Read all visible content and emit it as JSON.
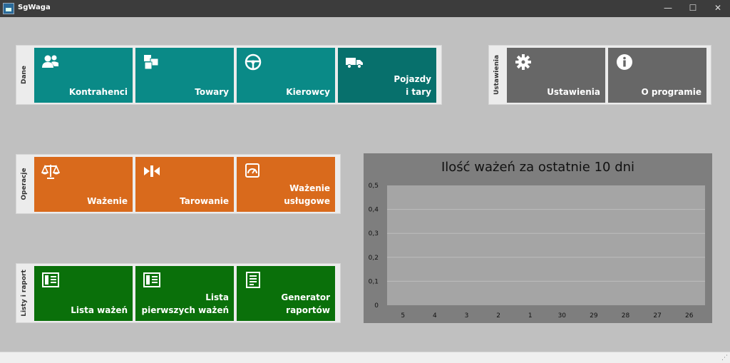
{
  "window": {
    "title": "SgWaga",
    "controls": {
      "minimize": "—",
      "maximize": "☐",
      "close": "✕"
    }
  },
  "groups": {
    "dane": {
      "label": "Dane",
      "tiles": [
        {
          "label": "Kontrahenci",
          "icon": "contacts-icon"
        },
        {
          "label": "Towary",
          "icon": "boxes-icon"
        },
        {
          "label": "Kierowcy",
          "icon": "steering-wheel-icon"
        },
        {
          "label": "Pojazdy\ni tary",
          "icon": "truck-icon"
        }
      ]
    },
    "ustawienia": {
      "label": "Ustawienia",
      "tiles": [
        {
          "label": "Ustawienia",
          "icon": "gear-icon"
        },
        {
          "label": "O programie",
          "icon": "info-icon"
        }
      ]
    },
    "operacje": {
      "label": "Operacje",
      "tiles": [
        {
          "label": "Ważenie",
          "icon": "scale-icon"
        },
        {
          "label": "Tarowanie",
          "icon": "tare-icon"
        },
        {
          "label": "Ważenie\nusługowe",
          "icon": "gauge-icon"
        }
      ]
    },
    "listy": {
      "label": "Listy i raport",
      "tiles": [
        {
          "label": "Lista ważeń",
          "icon": "list-icon"
        },
        {
          "label": "Lista\npierwszych ważeń",
          "icon": "list-icon"
        },
        {
          "label": "Generator\nraportów",
          "icon": "report-icon"
        }
      ]
    }
  },
  "chart_data": {
    "type": "bar",
    "title": "Ilość ważeń za ostatnie 10 dni",
    "categories": [
      "5",
      "4",
      "3",
      "2",
      "1",
      "30",
      "29",
      "28",
      "27",
      "26"
    ],
    "values": [
      0,
      0,
      0,
      0,
      0,
      0,
      0,
      0,
      0,
      0
    ],
    "ylim": [
      0,
      0.5
    ],
    "yticks": [
      "0",
      "0,1",
      "0,2",
      "0,3",
      "0,4",
      "0,5"
    ],
    "grid": true,
    "xlabel": "",
    "ylabel": ""
  }
}
